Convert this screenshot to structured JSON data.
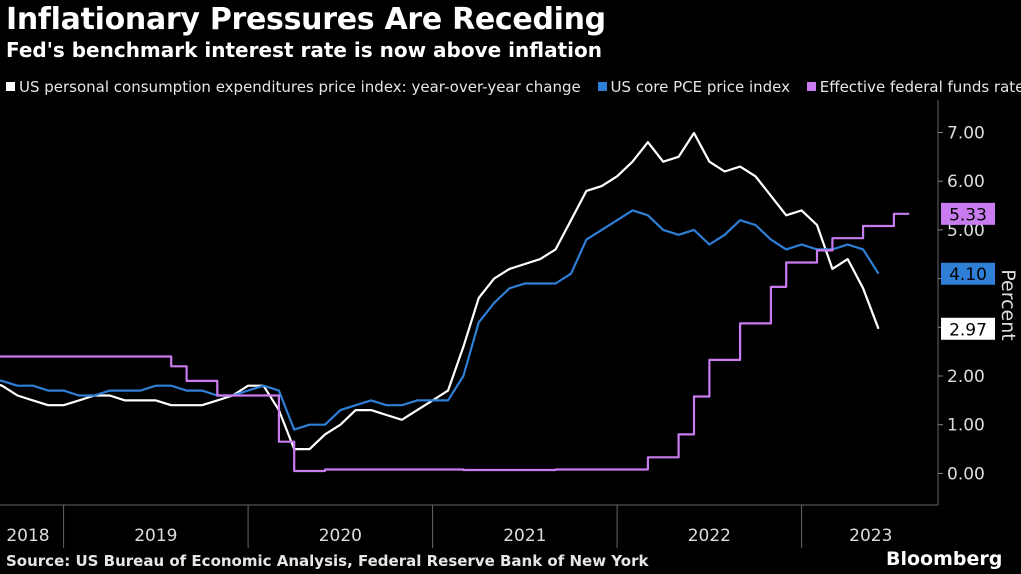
{
  "header": {
    "title": "Inflationary Pressures Are Receding",
    "subtitle": "Fed's benchmark interest rate is now above inflation"
  },
  "legend": [
    {
      "label": "US personal consumption expenditures price index: year-over-year change",
      "color": "#ffffff"
    },
    {
      "label": "US core PCE price index",
      "color": "#2f7fd6"
    },
    {
      "label": "Effective federal funds rate",
      "color": "#c97cf0"
    }
  ],
  "footer": {
    "source": "Source: US Bureau of Economic Analysis, Federal Reserve Bank of New York",
    "brand": "Bloomberg"
  },
  "chart_data": {
    "type": "line",
    "title": "Inflationary Pressures Are Receding",
    "subtitle": "Fed's benchmark interest rate is now above inflation",
    "xlabel": "",
    "ylabel": "Percent",
    "ylim": [
      -0.6,
      7.6
    ],
    "yticks": [
      0,
      1,
      2,
      3,
      4,
      5,
      6,
      7
    ],
    "ytick_labels": [
      "0.00",
      "1.00",
      "2.00",
      "3.00",
      "4.00",
      "5.00",
      "6.00",
      "7.00"
    ],
    "xtick_labels": [
      "2018",
      "2019",
      "2020",
      "2021",
      "2022",
      "2023"
    ],
    "grid": false,
    "legend_position": "top",
    "end_labels": [
      "5.33",
      "4.10",
      "2.97"
    ],
    "series": [
      {
        "name": "US personal consumption expenditures price index: year-over-year change",
        "color": "#ffffff",
        "end_label": "2.97",
        "points": [
          [
            "2018-01",
            2.2
          ],
          [
            "2018-03",
            2.1
          ],
          [
            "2018-05",
            2.0
          ],
          [
            "2018-07",
            2.0
          ],
          [
            "2018-09",
            1.8
          ],
          [
            "2018-10",
            1.6
          ],
          [
            "2018-11",
            1.5
          ],
          [
            "2018-12",
            1.4
          ],
          [
            "2019-01",
            1.4
          ],
          [
            "2019-02",
            1.5
          ],
          [
            "2019-03",
            1.6
          ],
          [
            "2019-04",
            1.6
          ],
          [
            "2019-05",
            1.5
          ],
          [
            "2019-06",
            1.5
          ],
          [
            "2019-07",
            1.5
          ],
          [
            "2019-08",
            1.4
          ],
          [
            "2019-09",
            1.4
          ],
          [
            "2019-10",
            1.4
          ],
          [
            "2019-11",
            1.5
          ],
          [
            "2019-12",
            1.6
          ],
          [
            "2020-01",
            1.8
          ],
          [
            "2020-02",
            1.8
          ],
          [
            "2020-03",
            1.3
          ],
          [
            "2020-04",
            0.5
          ],
          [
            "2020-05",
            0.5
          ],
          [
            "2020-06",
            0.8
          ],
          [
            "2020-07",
            1.0
          ],
          [
            "2020-08",
            1.3
          ],
          [
            "2020-09",
            1.3
          ],
          [
            "2020-10",
            1.2
          ],
          [
            "2020-11",
            1.1
          ],
          [
            "2020-12",
            1.3
          ],
          [
            "2021-01",
            1.5
          ],
          [
            "2021-02",
            1.7
          ],
          [
            "2021-03",
            2.6
          ],
          [
            "2021-04",
            3.6
          ],
          [
            "2021-05",
            4.0
          ],
          [
            "2021-06",
            4.2
          ],
          [
            "2021-07",
            4.3
          ],
          [
            "2021-08",
            4.4
          ],
          [
            "2021-09",
            4.6
          ],
          [
            "2021-10",
            5.2
          ],
          [
            "2021-11",
            5.8
          ],
          [
            "2021-12",
            5.9
          ],
          [
            "2022-01",
            6.1
          ],
          [
            "2022-02",
            6.4
          ],
          [
            "2022-03",
            6.8
          ],
          [
            "2022-04",
            6.4
          ],
          [
            "2022-05",
            6.5
          ],
          [
            "2022-06",
            6.99
          ],
          [
            "2022-07",
            6.4
          ],
          [
            "2022-08",
            6.2
          ],
          [
            "2022-09",
            6.3
          ],
          [
            "2022-10",
            6.1
          ],
          [
            "2022-11",
            5.7
          ],
          [
            "2022-12",
            5.3
          ],
          [
            "2023-01",
            5.4
          ],
          [
            "2023-02",
            5.1
          ],
          [
            "2023-03",
            4.2
          ],
          [
            "2023-04",
            4.4
          ],
          [
            "2023-05",
            3.8
          ],
          [
            "2023-06",
            2.97
          ]
        ]
      },
      {
        "name": "US core PCE price index",
        "color": "#2f7fd6",
        "end_label": "4.10",
        "points": [
          [
            "2018-01",
            2.0
          ],
          [
            "2018-03",
            2.0
          ],
          [
            "2018-05",
            2.0
          ],
          [
            "2018-07",
            2.0
          ],
          [
            "2018-09",
            1.9
          ],
          [
            "2018-10",
            1.8
          ],
          [
            "2018-11",
            1.8
          ],
          [
            "2018-12",
            1.7
          ],
          [
            "2019-01",
            1.7
          ],
          [
            "2019-02",
            1.6
          ],
          [
            "2019-03",
            1.6
          ],
          [
            "2019-04",
            1.7
          ],
          [
            "2019-05",
            1.7
          ],
          [
            "2019-06",
            1.7
          ],
          [
            "2019-07",
            1.8
          ],
          [
            "2019-08",
            1.8
          ],
          [
            "2019-09",
            1.7
          ],
          [
            "2019-10",
            1.7
          ],
          [
            "2019-11",
            1.6
          ],
          [
            "2019-12",
            1.6
          ],
          [
            "2020-01",
            1.7
          ],
          [
            "2020-02",
            1.8
          ],
          [
            "2020-03",
            1.7
          ],
          [
            "2020-04",
            0.9
          ],
          [
            "2020-05",
            1.0
          ],
          [
            "2020-06",
            1.0
          ],
          [
            "2020-07",
            1.3
          ],
          [
            "2020-08",
            1.4
          ],
          [
            "2020-09",
            1.5
          ],
          [
            "2020-10",
            1.4
          ],
          [
            "2020-11",
            1.4
          ],
          [
            "2020-12",
            1.5
          ],
          [
            "2021-01",
            1.5
          ],
          [
            "2021-02",
            1.5
          ],
          [
            "2021-03",
            2.0
          ],
          [
            "2021-04",
            3.1
          ],
          [
            "2021-05",
            3.5
          ],
          [
            "2021-06",
            3.8
          ],
          [
            "2021-07",
            3.9
          ],
          [
            "2021-08",
            3.9
          ],
          [
            "2021-09",
            3.9
          ],
          [
            "2021-10",
            4.1
          ],
          [
            "2021-11",
            4.8
          ],
          [
            "2021-12",
            5.0
          ],
          [
            "2022-01",
            5.2
          ],
          [
            "2022-02",
            5.4
          ],
          [
            "2022-03",
            5.3
          ],
          [
            "2022-04",
            5.0
          ],
          [
            "2022-05",
            4.9
          ],
          [
            "2022-06",
            5.0
          ],
          [
            "2022-07",
            4.7
          ],
          [
            "2022-08",
            4.9
          ],
          [
            "2022-09",
            5.2
          ],
          [
            "2022-10",
            5.1
          ],
          [
            "2022-11",
            4.8
          ],
          [
            "2022-12",
            4.6
          ],
          [
            "2023-01",
            4.7
          ],
          [
            "2023-02",
            4.6
          ],
          [
            "2023-03",
            4.6
          ],
          [
            "2023-04",
            4.7
          ],
          [
            "2023-05",
            4.6
          ],
          [
            "2023-06",
            4.1
          ]
        ]
      },
      {
        "name": "Effective federal funds rate",
        "color": "#c97cf0",
        "step": true,
        "end_label": "5.33",
        "points": [
          [
            "2017-12",
            1.9
          ],
          [
            "2018-03",
            2.2
          ],
          [
            "2018-06",
            2.2
          ],
          [
            "2018-08",
            2.4
          ],
          [
            "2018-10",
            2.4
          ],
          [
            "2018-12",
            2.4
          ],
          [
            "2019-03",
            2.4
          ],
          [
            "2019-05",
            2.4
          ],
          [
            "2019-08",
            2.2
          ],
          [
            "2019-09",
            1.9
          ],
          [
            "2019-10",
            1.9
          ],
          [
            "2019-11",
            1.6
          ],
          [
            "2019-12",
            1.6
          ],
          [
            "2020-01",
            1.6
          ],
          [
            "2020-02",
            1.6
          ],
          [
            "2020-03",
            0.65
          ],
          [
            "2020-04",
            0.05
          ],
          [
            "2020-05",
            0.05
          ],
          [
            "2020-06",
            0.08
          ],
          [
            "2020-09",
            0.08
          ],
          [
            "2020-12",
            0.08
          ],
          [
            "2021-03",
            0.07
          ],
          [
            "2021-06",
            0.07
          ],
          [
            "2021-09",
            0.08
          ],
          [
            "2021-12",
            0.08
          ],
          [
            "2022-03",
            0.33
          ],
          [
            "2022-04",
            0.33
          ],
          [
            "2022-05",
            0.8
          ],
          [
            "2022-06",
            1.58
          ],
          [
            "2022-07",
            2.33
          ],
          [
            "2022-08",
            2.33
          ],
          [
            "2022-09",
            3.08
          ],
          [
            "2022-10",
            3.08
          ],
          [
            "2022-11",
            3.83
          ],
          [
            "2022-12",
            4.33
          ],
          [
            "2023-01",
            4.33
          ],
          [
            "2023-02",
            4.58
          ],
          [
            "2023-03",
            4.83
          ],
          [
            "2023-04",
            4.83
          ],
          [
            "2023-05",
            5.08
          ],
          [
            "2023-06",
            5.08
          ],
          [
            "2023-07",
            5.33
          ],
          [
            "2023-08",
            5.33
          ]
        ]
      }
    ]
  }
}
